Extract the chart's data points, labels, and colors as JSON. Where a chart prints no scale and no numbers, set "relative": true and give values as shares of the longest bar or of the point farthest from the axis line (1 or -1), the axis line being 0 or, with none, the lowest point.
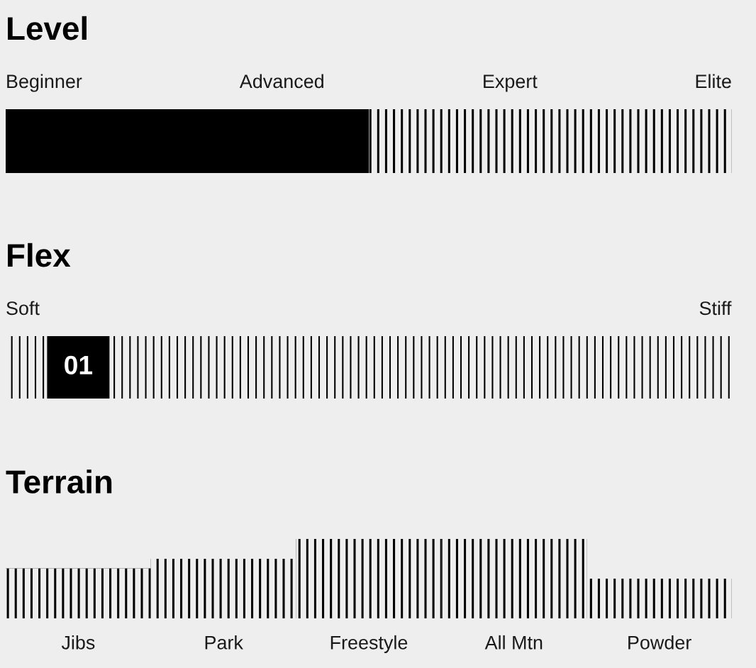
{
  "chart_data": [
    {
      "type": "bar",
      "title": "Level",
      "orientation": "horizontal",
      "stacked": true,
      "relative": true,
      "categories": [
        null
      ],
      "series": [
        {
          "color": "#000000",
          "values": [
            0.5
          ]
        },
        {
          "values": [
            0.5
          ]
        }
      ],
      "annotations": [
        "Beginner",
        "Advanced",
        "Expert",
        "Elite"
      ],
      "tick_labels": false
    },
    {
      "type": "other",
      "title": "Flex",
      "values": [
        1
      ],
      "value_labels": [
        "01"
      ],
      "color": "#000000",
      "annotations": [
        "Soft",
        "Stiff"
      ]
    },
    {
      "type": "bar",
      "title": "Terrain",
      "relative": true,
      "categories": [
        "Jibs",
        "Park",
        "Freestyle",
        "All Mtn",
        "Powder"
      ],
      "values": [
        0.63,
        0.75,
        1,
        1,
        0.5
      ],
      "tick_labels": "x"
    }
  ]
}
